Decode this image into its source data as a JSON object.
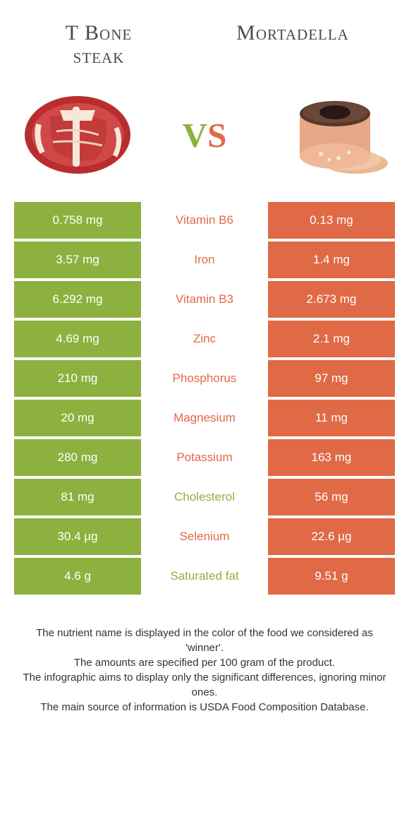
{
  "colors": {
    "left": "#8db13f",
    "right": "#e06a46",
    "mid_bg": "#ffffff"
  },
  "header": {
    "left_line1": "T Bone",
    "left_line2": "steak",
    "right": "Mortadella",
    "vs": "vs"
  },
  "rows": [
    {
      "left": "0.758 mg",
      "label": "Vitamin B6",
      "label_color": "#e06a46",
      "right": "0.13 mg"
    },
    {
      "left": "3.57 mg",
      "label": "Iron",
      "label_color": "#e06a46",
      "right": "1.4 mg"
    },
    {
      "left": "6.292 mg",
      "label": "Vitamin B3",
      "label_color": "#e06a46",
      "right": "2.673 mg"
    },
    {
      "left": "4.69 mg",
      "label": "Zinc",
      "label_color": "#e06a46",
      "right": "2.1 mg"
    },
    {
      "left": "210 mg",
      "label": "Phosphorus",
      "label_color": "#e06a46",
      "right": "97 mg"
    },
    {
      "left": "20 mg",
      "label": "Magnesium",
      "label_color": "#e06a46",
      "right": "11 mg"
    },
    {
      "left": "280 mg",
      "label": "Potassium",
      "label_color": "#e06a46",
      "right": "163 mg"
    },
    {
      "left": "81 mg",
      "label": "Cholesterol",
      "label_color": "#8db13f",
      "right": "56 mg"
    },
    {
      "left": "30.4 µg",
      "label": "Selenium",
      "label_color": "#e06a46",
      "right": "22.6 µg"
    },
    {
      "left": "4.6 g",
      "label": "Saturated fat",
      "label_color": "#8db13f",
      "right": "9.51 g"
    }
  ],
  "footer": {
    "line1": "The nutrient name is displayed in the color of the food we considered as 'winner'.",
    "line2": "The amounts are specified per 100 gram of the product.",
    "line3": "The infographic aims to display only the significant differences, ignoring minor ones.",
    "line4": "The main source of information is USDA Food Composition Database."
  }
}
